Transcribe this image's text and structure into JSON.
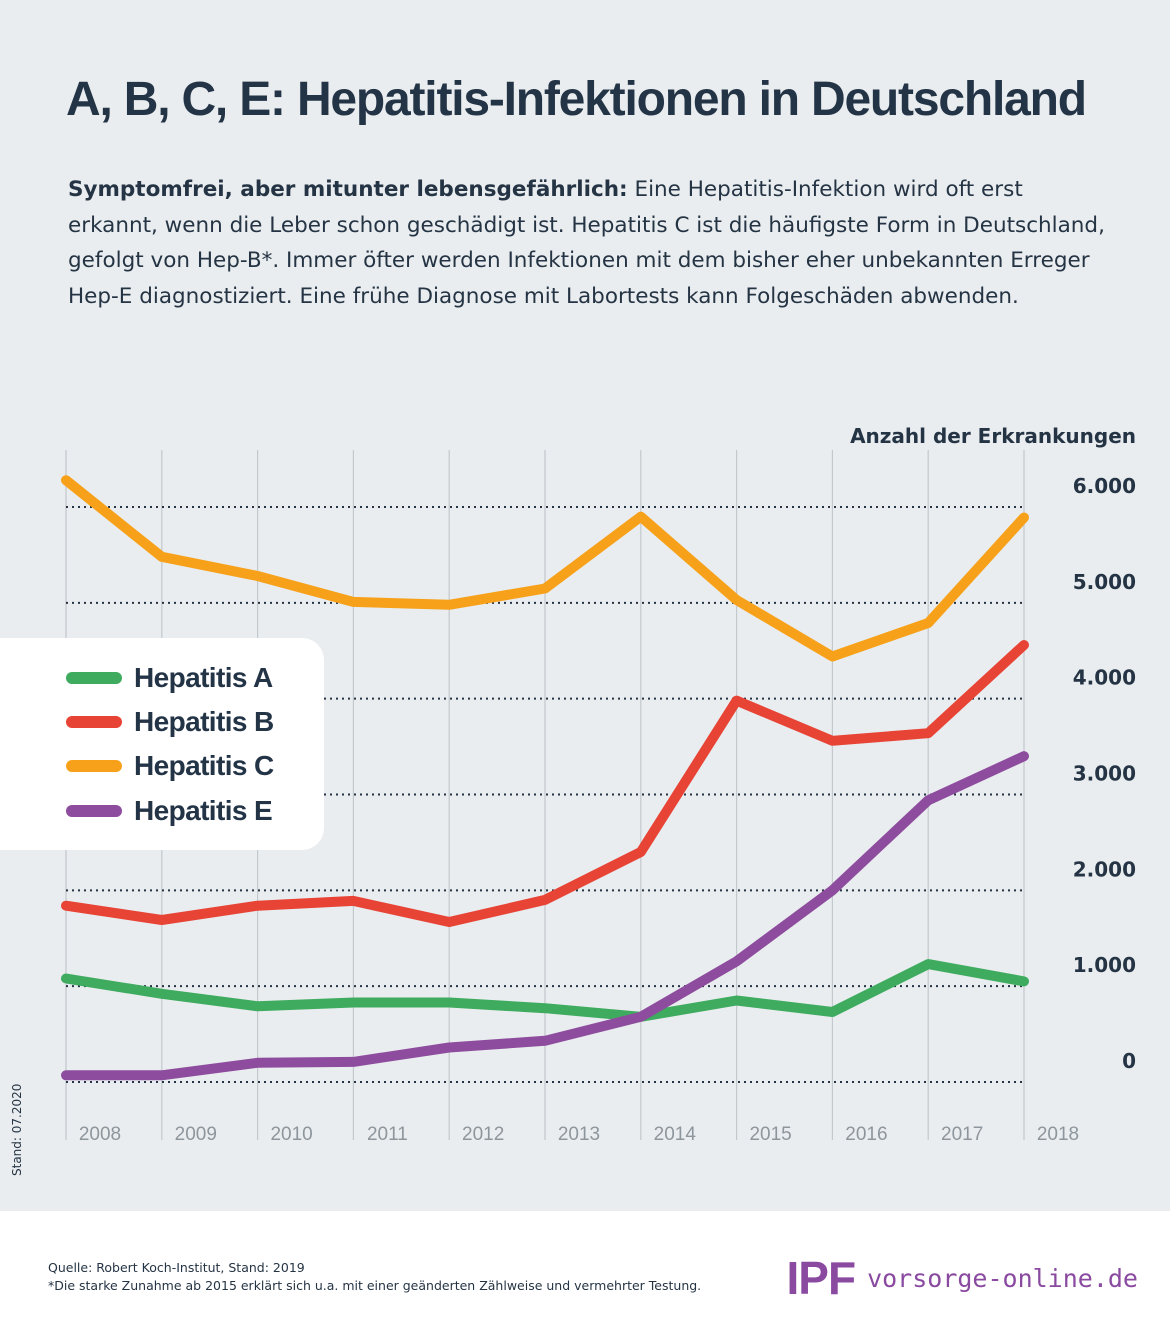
{
  "header": {
    "title": "A, B, C, E: Hepatitis-Infektionen in Deutschland",
    "intro_bold": "Symptomfrei, aber mitunter lebensgefährlich:",
    "intro_text": "Eine Hepatitis-Infektion wird oft erst erkannt, wenn die Leber schon geschädigt ist. Hepatitis C ist die häufigste Form in Deutschland, gefolgt von Hep-B*. Immer öfter werden Infektionen mit dem bisher eher unbekannten Erreger Hep-E diagnostiziert. Eine frühe Diagnose mit Labortests kann Folgeschäden abwenden."
  },
  "chart_data": {
    "type": "line",
    "ylabel": "Anzahl der Erkrankungen",
    "xlabel": "",
    "ylim": [
      0,
      6000
    ],
    "y_ticks": [
      "0",
      "1.000",
      "2.000",
      "3.000",
      "4.000",
      "5.000",
      "6.000"
    ],
    "y_tick_values": [
      0,
      1000,
      2000,
      3000,
      4000,
      5000,
      6000
    ],
    "x": [
      "2008",
      "2009",
      "2010",
      "2011",
      "2012",
      "2013",
      "2014",
      "2015",
      "2016",
      "2017",
      "2018"
    ],
    "grid": true,
    "legend_position": "left",
    "series": [
      {
        "name": "Hepatitis A",
        "color": "#3eab5f",
        "values": [
          1080,
          920,
          790,
          830,
          830,
          770,
          680,
          850,
          730,
          1230,
          1050
        ]
      },
      {
        "name": "Hepatitis B",
        "color": "#e84436",
        "values": [
          1840,
          1690,
          1840,
          1890,
          1670,
          1900,
          2400,
          3980,
          3560,
          3640,
          4560
        ]
      },
      {
        "name": "Hepatitis C",
        "color": "#f7a11a",
        "values": [
          6280,
          5480,
          5280,
          5010,
          4980,
          5150,
          5900,
          5030,
          4440,
          4790,
          5890
        ]
      },
      {
        "name": "Hepatitis E",
        "color": "#8e4c9e",
        "values": [
          70,
          70,
          200,
          210,
          360,
          430,
          680,
          1260,
          2000,
          2940,
          3400
        ]
      }
    ]
  },
  "sidebar": {
    "stand": "Stand: 07.2020"
  },
  "footer": {
    "source": "Quelle: Robert Koch-Institut, Stand: 2019",
    "note": "*Die starke Zunahme ab 2015 erklärt sich u.a. mit einer geänderten Zählweise und vermehrter Testung.",
    "logo": "IPF",
    "url": "vorsorge-online.de",
    "brand_color": "#8a4aa0"
  }
}
